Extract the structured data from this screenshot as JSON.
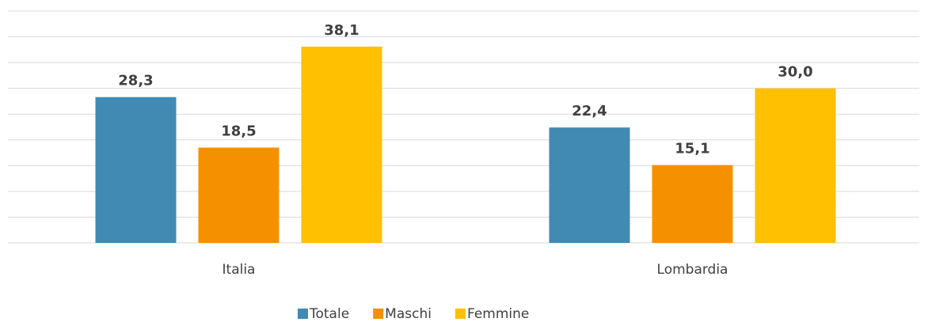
{
  "chart_data": {
    "type": "bar",
    "categories": [
      "Italia",
      "Lombardia"
    ],
    "series": [
      {
        "name": "Totale",
        "color": "#418ab3",
        "values": [
          28.3,
          22.4
        ],
        "value_labels": [
          "28,3",
          "22,4"
        ]
      },
      {
        "name": "Maschi",
        "color": "#f59100",
        "values": [
          18.5,
          15.1
        ],
        "value_labels": [
          "18,5",
          "15,1"
        ]
      },
      {
        "name": "Femmine",
        "color": "#fec000",
        "values": [
          38.1,
          30.0
        ],
        "value_labels": [
          "38,1",
          "30,0"
        ]
      }
    ],
    "ylim": [
      0,
      45
    ],
    "yticks": [
      0,
      5,
      10,
      15,
      20,
      25,
      30,
      35,
      40,
      45
    ],
    "grid": true,
    "legend": "bottom"
  }
}
